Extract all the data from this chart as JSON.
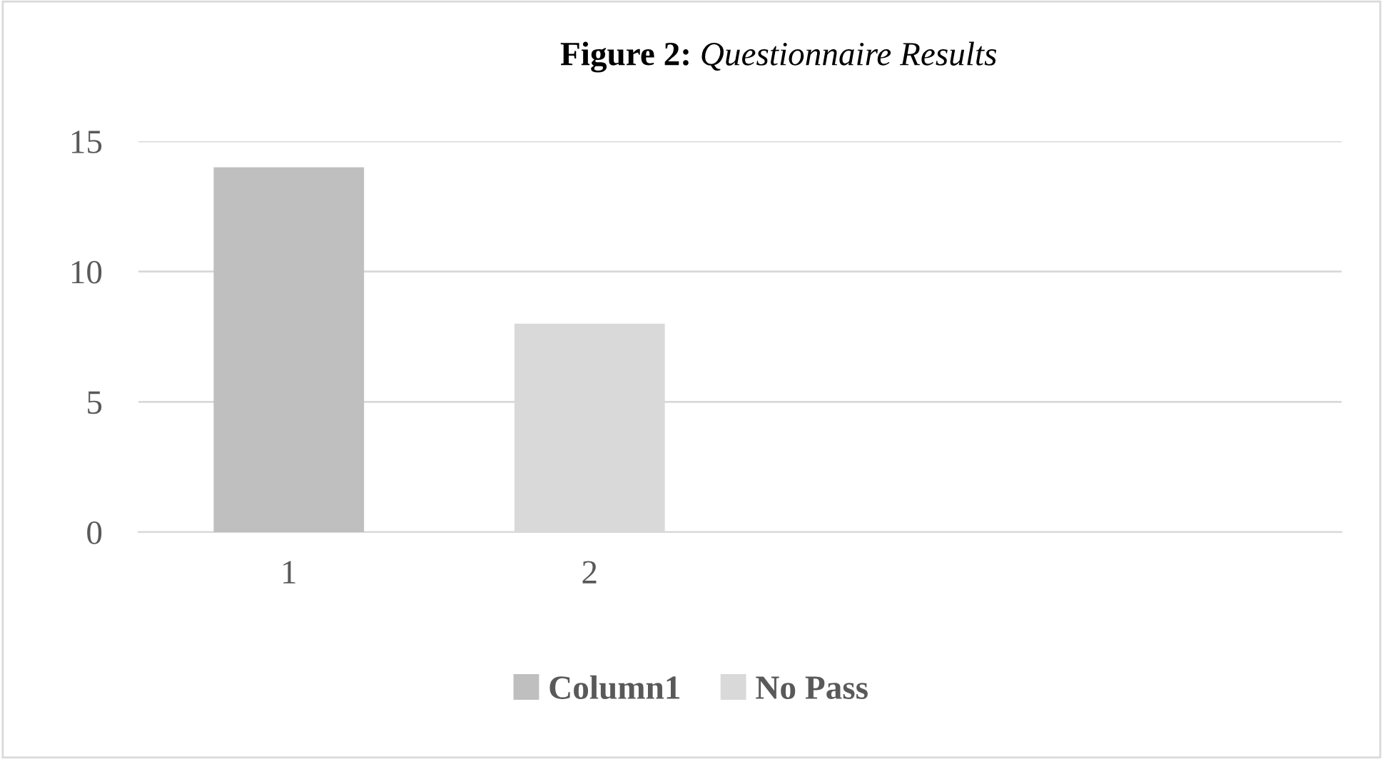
{
  "chart_data": {
    "type": "bar",
    "title": "Figure 2: Questionnaire Results",
    "categories": [
      "1",
      "2",
      null,
      null
    ],
    "series": [
      {
        "name": "Column1",
        "color": "#bfbfbf",
        "values": [
          14,
          null,
          null,
          null
        ]
      },
      {
        "name": "No Pass",
        "color": "#d9d9d9",
        "values": [
          null,
          8,
          null,
          null
        ]
      }
    ],
    "stacked": true,
    "ylim": [
      0,
      15
    ],
    "yticks": [
      0,
      5,
      10,
      15
    ],
    "grid": "y",
    "legend": "bottom"
  }
}
